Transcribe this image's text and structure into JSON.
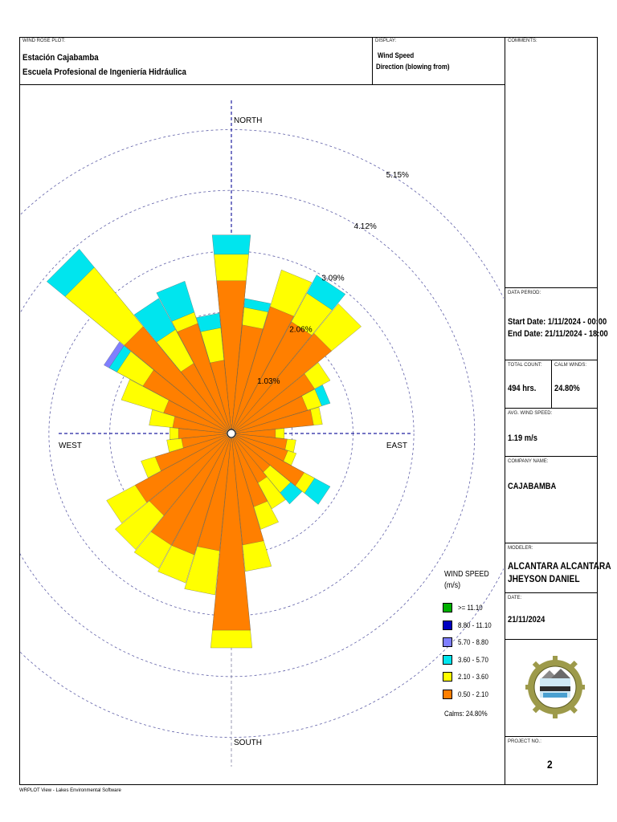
{
  "header": {
    "plot_label": "WIND ROSE PLOT:",
    "station": "Estación Cajabamba",
    "school": "Escuela Profesional de Ingeniería Hidráulica",
    "display_label": "DISPLAY:",
    "display_line1": "Wind Speed",
    "display_line2": "Direction (blowing from)",
    "comments_label": "COMMENTS:"
  },
  "side": {
    "data_period_label": "DATA PERIOD:",
    "start_date": "Start Date: 1/11/2024 - 00:00",
    "end_date": "End Date: 21/11/2024 - 18:00",
    "total_count_label": "TOTAL COUNT:",
    "total_count": "494 hrs.",
    "calm_winds_label": "CALM WINDS:",
    "calm_winds": "24.80%",
    "avg_speed_label": "AVG. WIND SPEED:",
    "avg_speed": "1.19 m/s",
    "company_label": "COMPANY NAME:",
    "company": "CAJABAMBA",
    "modeler_label": "MODELER:",
    "modeler_line1": "ALCANTARA ALCANTARA",
    "modeler_line2": "JHEYSON DANIEL",
    "date_label": "DATE:",
    "date": "21/11/2024",
    "project_label": "PROJECT NO.:",
    "project": "2"
  },
  "footer": "WRPLOT View - Lakes Environmental Software",
  "chart_data": {
    "type": "wind-rose",
    "directions": [
      "N",
      "NNE",
      "NE",
      "ENE",
      "E",
      "ESE",
      "SE",
      "SSE",
      "S",
      "SSW",
      "SW",
      "WSW",
      "W",
      "WNW",
      "NW",
      "NNW"
    ],
    "sectors_per_direction": 2,
    "sector_degrees": [
      0,
      11.25,
      22.5,
      33.75,
      45,
      56.25,
      67.5,
      78.75,
      90,
      101.25,
      112.5,
      123.75,
      135,
      146.25,
      157.5,
      168.75,
      180,
      191.25,
      202.5,
      213.75,
      225,
      236.25,
      247.5,
      258.75,
      270,
      281.25,
      292.5,
      303.75,
      315,
      326.25,
      337.5,
      348.75
    ],
    "compass_labels": {
      "north": "NORTH",
      "east": "EAST",
      "south": "SOUTH",
      "west": "WEST"
    },
    "ring_labels": [
      "1.03%",
      "2.06%",
      "3.09%",
      "4.12%",
      "5.15%"
    ],
    "ring_values": [
      1.03,
      2.06,
      3.09,
      4.12,
      5.15
    ],
    "legend_title_line1": "WIND SPEED",
    "legend_title_line2": "(m/s)",
    "bins": [
      {
        "label": ">= 11.10",
        "color": "#00b000"
      },
      {
        "label": "8.80 - 11.10",
        "color": "#0000c0"
      },
      {
        "label": "5.70 - 8.80",
        "color": "#7f7fff"
      },
      {
        "label": "3.60 - 5.70",
        "color": "#00e5ee"
      },
      {
        "label": "2.10 - 3.60",
        "color": "#ffff00"
      },
      {
        "label": "0.50 - 2.10",
        "color": "#ff7f00"
      }
    ],
    "calms_label": "Calms: 24.80%",
    "cumulative_percent": [
      [
        2.6,
        3.05,
        3.38,
        0,
        0,
        0
      ],
      [
        1.85,
        2.15,
        2.3,
        0,
        0,
        0
      ],
      [
        2.25,
        2.9,
        0,
        0,
        0,
        0
      ],
      [
        2.15,
        2.7,
        3.05,
        0,
        0,
        0
      ],
      [
        2.2,
        2.85,
        0,
        0,
        0,
        0
      ],
      [
        1.6,
        1.9,
        0,
        0,
        0,
        0
      ],
      [
        1.35,
        1.6,
        1.75,
        0,
        0,
        0
      ],
      [
        1.4,
        1.55,
        0,
        0,
        0,
        0
      ],
      [
        0.75,
        0.9,
        0,
        0,
        0,
        0
      ],
      [
        0.95,
        1.1,
        0,
        0,
        0,
        0
      ],
      [
        1.0,
        1.15,
        0,
        0,
        0,
        0
      ],
      [
        1.4,
        1.6,
        1.9,
        0,
        0,
        0
      ],
      [
        0.85,
        1.3,
        1.55,
        0,
        0,
        0
      ],
      [
        0.95,
        1.45,
        0,
        0,
        0,
        0
      ],
      [
        1.3,
        1.7,
        0,
        0,
        0,
        0
      ],
      [
        1.9,
        2.35,
        0,
        0,
        0,
        0
      ],
      [
        3.35,
        3.65,
        0,
        0,
        0,
        0
      ],
      [
        2.0,
        2.75,
        0,
        0,
        0,
        0
      ],
      [
        2.15,
        2.65,
        0,
        0,
        0,
        0
      ],
      [
        2.15,
        2.6,
        0,
        0,
        0,
        0
      ],
      [
        1.8,
        2.55,
        0,
        0,
        0,
        0
      ],
      [
        1.85,
        2.4,
        0,
        0,
        0,
        0
      ],
      [
        1.35,
        1.6,
        0,
        0,
        0,
        0
      ],
      [
        0.85,
        1.1,
        0,
        0,
        0,
        0
      ],
      [
        0.9,
        1.05,
        0,
        0,
        0,
        0
      ],
      [
        1.0,
        1.4,
        0,
        0,
        0,
        0
      ],
      [
        1.2,
        1.95,
        0,
        0,
        0,
        0
      ],
      [
        1.7,
        2.2,
        2.35,
        2.45,
        0,
        0
      ],
      [
        2.35,
        3.65,
        4.05,
        0,
        0,
        0
      ],
      [
        1.35,
        2.0,
        2.6,
        0,
        0,
        0
      ],
      [
        1.95,
        2.15,
        2.7,
        0,
        0,
        0
      ],
      [
        1.25,
        1.8,
        2.05,
        0,
        0,
        0
      ]
    ]
  }
}
